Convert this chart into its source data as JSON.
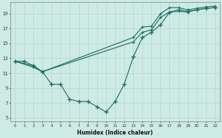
{
  "xlabel": "Humidex (Indice chaleur)",
  "ylabel": "",
  "xlim_min": -0.5,
  "xlim_max": 22.5,
  "ylim_min": 4.5,
  "ylim_max": 20.5,
  "xticks": [
    0,
    1,
    2,
    3,
    4,
    5,
    6,
    7,
    8,
    9,
    10,
    11,
    12,
    13,
    14,
    15,
    16,
    17,
    18,
    19,
    20,
    21,
    22
  ],
  "yticks": [
    5,
    7,
    9,
    11,
    13,
    15,
    17,
    19
  ],
  "bg_color": "#cdeae5",
  "line_color": "#1a6e62",
  "grid_color": "#b8d8d4",
  "line1_x": [
    0,
    1,
    2,
    3,
    4,
    5,
    6,
    7,
    8,
    9,
    10,
    11,
    12,
    13,
    14,
    15,
    16,
    17,
    18,
    19,
    20,
    21,
    22
  ],
  "line1_y": [
    12.6,
    12.6,
    12.0,
    11.2,
    9.5,
    9.5,
    7.5,
    7.2,
    7.2,
    6.5,
    5.8,
    7.2,
    9.5,
    13.2,
    15.8,
    16.5,
    17.5,
    19.2,
    19.5,
    19.3,
    19.5,
    19.7,
    19.8
  ],
  "line2_x": [
    0,
    2,
    3,
    13,
    14,
    15,
    16,
    17,
    18,
    19,
    20,
    21,
    22
  ],
  "line2_y": [
    12.6,
    12.0,
    11.2,
    15.8,
    17.2,
    17.3,
    19.0,
    19.8,
    19.8,
    19.5,
    19.7,
    19.9,
    20.0
  ],
  "line3_x": [
    0,
    2,
    3,
    13,
    14,
    15,
    16,
    17,
    18,
    19,
    20,
    21,
    22
  ],
  "line3_y": [
    12.6,
    11.8,
    11.2,
    15.2,
    16.5,
    16.8,
    18.5,
    19.2,
    19.3,
    19.2,
    19.5,
    19.7,
    19.8
  ]
}
